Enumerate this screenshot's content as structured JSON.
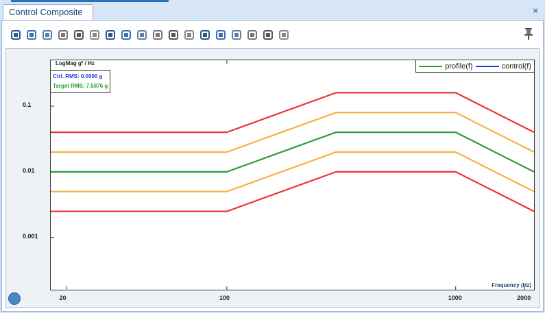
{
  "window": {
    "tab_title": "Control Composite",
    "close_glyph": "×"
  },
  "toolbar": {
    "buttons": [
      "zoom-icon",
      "fit-icon",
      "layers-icon",
      "cursor-icon",
      "dual-cursor-icon",
      "arrow-right-icon",
      "trash-icon",
      "marker-icon",
      "grid-icon",
      "pointer-icon",
      "comment-icon",
      "ruler-icon",
      "flag-icon",
      "note-icon",
      "export-icon",
      "snapshot-icon",
      "save-icon",
      "settings-icon"
    ],
    "pin_icon": "pin-icon"
  },
  "chart": {
    "y_unit": "LogMag g² / Hz",
    "ctrl_rms": "Ctrl. RMS: 0.0000 g",
    "target_rms": "Target RMS: 7.5876 g",
    "x_axis_label": "Frequency (Hz)",
    "colors": {
      "profile": "#2e9a33",
      "control": "#2233dd",
      "abort": "#ee3333",
      "alarm": "#f5b041",
      "ctrl_text": "#2233dd",
      "target_text": "#2e9a33"
    }
  },
  "chart_data": {
    "type": "line",
    "xscale": "log",
    "yscale": "log",
    "xlim": [
      17,
      2200
    ],
    "ylim": [
      0.00016,
      0.5
    ],
    "x_ticks": [
      20,
      100,
      1000,
      2000
    ],
    "x_tick_labels": [
      "20",
      "100",
      "1000",
      "2000"
    ],
    "y_ticks": [
      0.1,
      0.01,
      0.001
    ],
    "y_tick_labels": [
      "0.1",
      "0.01",
      "0.001"
    ],
    "xlabel": "Frequency (Hz)",
    "ylabel": "LogMag g² / Hz",
    "legend": [
      "profile(f)",
      "control(f)"
    ],
    "legend_position": "top-right",
    "series": [
      {
        "name": "profile(f)",
        "color": "#2e9a33",
        "x": [
          17,
          100,
          300,
          1000,
          2200
        ],
        "y": [
          0.01,
          0.01,
          0.04,
          0.04,
          0.01
        ]
      },
      {
        "color": "#f5b041",
        "x": [
          17,
          100,
          300,
          1000,
          2200
        ],
        "y": [
          0.02,
          0.02,
          0.08,
          0.08,
          0.02
        ]
      },
      {
        "color": "#f5b041",
        "x": [
          17,
          100,
          300,
          1000,
          2200
        ],
        "y": [
          0.005,
          0.005,
          0.02,
          0.02,
          0.005
        ]
      },
      {
        "color": "#ee3333",
        "x": [
          17,
          100,
          300,
          1000,
          2200
        ],
        "y": [
          0.04,
          0.04,
          0.16,
          0.16,
          0.04
        ]
      },
      {
        "color": "#ee3333",
        "x": [
          17,
          100,
          300,
          1000,
          2200
        ],
        "y": [
          0.0025,
          0.0025,
          0.01,
          0.01,
          0.0025
        ]
      }
    ]
  }
}
